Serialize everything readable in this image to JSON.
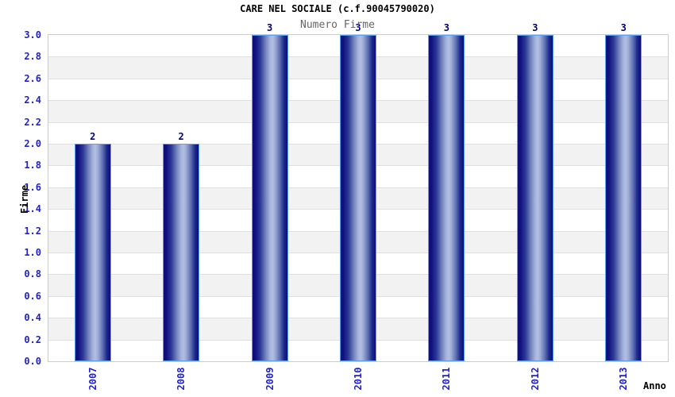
{
  "chart_data": {
    "type": "bar",
    "title": "CARE NEL SOCIALE (c.f.90045790020)",
    "subtitle": "Numero Firme",
    "categories": [
      "2007",
      "2008",
      "2009",
      "2010",
      "2011",
      "2012",
      "2013"
    ],
    "values": [
      2,
      2,
      3,
      3,
      3,
      3,
      3
    ],
    "bar_value_labels": [
      "2",
      "2",
      "3",
      "3",
      "3",
      "3",
      "3"
    ],
    "xlabel": "Anno",
    "ylabel": "Firme",
    "ylim": [
      0,
      3.0
    ],
    "ytick_step": 0.2,
    "ytick_decimals": 1,
    "grid": "horizontal alternating bands",
    "legend": "none",
    "colors": {
      "bar_dark": "#0d0d7b",
      "bar_light": "#b2bfe2",
      "bar_border": "#5aa0f5",
      "axis_tick_label": "#2222cc",
      "bar_value_label": "#000080",
      "title_text": "#000000",
      "subtitle_text": "#666666",
      "band_gray": "#f2f2f2",
      "band_white": "#ffffff",
      "gridline": "#e0e0e0",
      "plot_border": "#cccccc",
      "background": "#ffffff"
    }
  }
}
